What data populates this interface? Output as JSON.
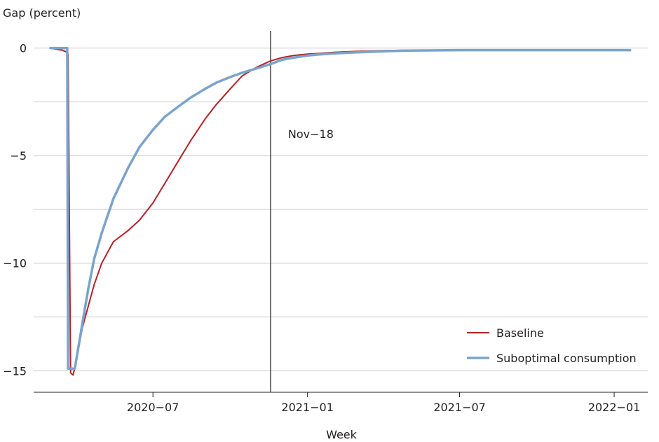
{
  "chart_data": {
    "type": "line",
    "ylabel": "Gap (percent)",
    "xlabel": "Week",
    "ylim": [
      -16,
      0.8
    ],
    "xlim": [
      "2020-02-10",
      "2022-02-10"
    ],
    "yticks": [
      0,
      -5,
      -10,
      -15
    ],
    "ytick_labels": [
      "0",
      "−5",
      "−10",
      "−15"
    ],
    "ygrid": [
      0,
      -2.5,
      -5,
      -7.5,
      -10,
      -12.5,
      -15
    ],
    "xticks": [
      "2020-07-01",
      "2021-01-01",
      "2021-07-01",
      "2022-01-01"
    ],
    "xtick_labels": [
      "2020−07",
      "2021−01",
      "2021−07",
      "2022−01"
    ],
    "grid": true,
    "legend_position": "bottom-right",
    "vline": {
      "x": "2020-11-18",
      "label": "Nov−18"
    },
    "series": [
      {
        "name": "Baseline",
        "color": "#b22228",
        "x": [
          "2020-03-01",
          "2020-03-15",
          "2020-03-21",
          "2020-03-22",
          "2020-03-25",
          "2020-03-28",
          "2020-04-01",
          "2020-04-08",
          "2020-04-15",
          "2020-04-22",
          "2020-05-01",
          "2020-05-15",
          "2020-06-01",
          "2020-06-15",
          "2020-07-01",
          "2020-07-15",
          "2020-08-01",
          "2020-08-15",
          "2020-09-01",
          "2020-09-15",
          "2020-10-01",
          "2020-10-15",
          "2020-11-01",
          "2020-11-18",
          "2020-12-01",
          "2020-12-15",
          "2021-01-01",
          "2021-01-15",
          "2021-02-01",
          "2021-03-01",
          "2021-04-01",
          "2021-05-01",
          "2021-07-01",
          "2021-10-01",
          "2022-01-01",
          "2022-01-20"
        ],
        "y": [
          0,
          -0.1,
          -0.2,
          -0.3,
          -15.1,
          -15.2,
          -14.5,
          -13.0,
          -12.0,
          -11.0,
          -10.0,
          -9.0,
          -8.5,
          -8.0,
          -7.2,
          -6.3,
          -5.2,
          -4.3,
          -3.3,
          -2.6,
          -1.9,
          -1.3,
          -0.9,
          -0.6,
          -0.45,
          -0.35,
          -0.28,
          -0.25,
          -0.2,
          -0.15,
          -0.12,
          -0.1,
          -0.1,
          -0.1,
          -0.1,
          -0.1
        ]
      },
      {
        "name": "Suboptimal consumption",
        "color": "#7ba3cb",
        "x": [
          "2020-03-01",
          "2020-03-21",
          "2020-03-22",
          "2020-03-25",
          "2020-03-30",
          "2020-04-08",
          "2020-04-15",
          "2020-04-22",
          "2020-05-01",
          "2020-05-15",
          "2020-06-01",
          "2020-06-15",
          "2020-07-01",
          "2020-07-15",
          "2020-08-01",
          "2020-08-15",
          "2020-09-01",
          "2020-09-15",
          "2020-10-01",
          "2020-10-15",
          "2020-11-01",
          "2020-11-18",
          "2020-12-01",
          "2020-12-15",
          "2021-01-01",
          "2021-01-15",
          "2021-02-01",
          "2021-03-01",
          "2021-04-01",
          "2021-05-01",
          "2021-07-01",
          "2021-10-01",
          "2022-01-01",
          "2022-01-20"
        ],
        "y": [
          0,
          0,
          -14.9,
          -14.9,
          -14.9,
          -12.8,
          -11.2,
          -9.8,
          -8.6,
          -7.0,
          -5.6,
          -4.6,
          -3.8,
          -3.2,
          -2.7,
          -2.3,
          -1.9,
          -1.6,
          -1.35,
          -1.15,
          -0.95,
          -0.75,
          -0.55,
          -0.45,
          -0.35,
          -0.3,
          -0.25,
          -0.2,
          -0.15,
          -0.12,
          -0.1,
          -0.1,
          -0.1,
          -0.1
        ]
      }
    ]
  }
}
